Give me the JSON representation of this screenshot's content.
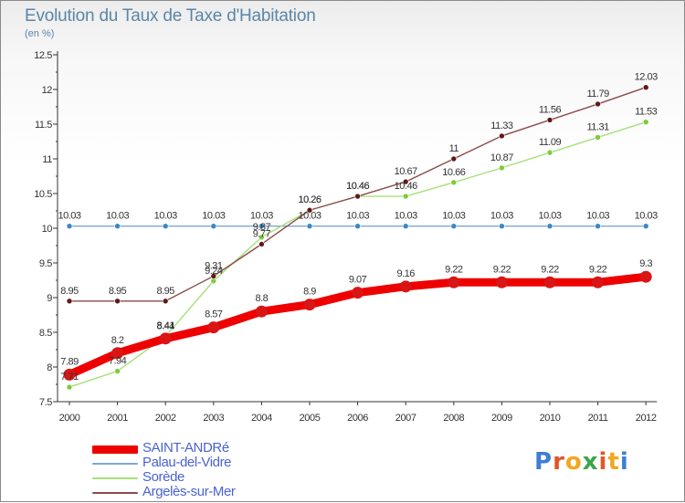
{
  "header": {
    "title": "Evolution du Taux de Taxe d'Habitation",
    "subtitle": "(en %)"
  },
  "brand": {
    "name": "Proxiti",
    "letters": [
      "P",
      "r",
      "o",
      "x",
      "i",
      "t",
      "i"
    ],
    "letter_colors": [
      "#3e7fd4",
      "#e0572a",
      "#f0a821",
      "#3aa64a",
      "#e0572a",
      "#f0a821",
      "#3e7fd4"
    ]
  },
  "chart_data": {
    "type": "line",
    "title": "Evolution du Taux de Taxe d'Habitation",
    "subtitle": "(en %)",
    "xlabel": "",
    "ylabel": "",
    "x": [
      "2000",
      "2001",
      "2002",
      "2003",
      "2004",
      "2005",
      "2006",
      "2007",
      "2008",
      "2009",
      "2010",
      "2011",
      "2012"
    ],
    "ylim": [
      7.5,
      12.5
    ],
    "yticks": [
      "7.5",
      "8",
      "8.5",
      "9",
      "9.5",
      "10",
      "10.5",
      "11",
      "11.5",
      "12",
      "12.5"
    ],
    "grid": false,
    "legend_position": "bottom-left",
    "series": [
      {
        "name": "SAINT-ANDRé",
        "color": "#ee0000",
        "point_color": "#d91515",
        "emphasis": true,
        "values": [
          7.89,
          8.2,
          8.41,
          8.57,
          8.8,
          8.9,
          9.07,
          9.16,
          9.22,
          9.22,
          9.22,
          9.22,
          9.3
        ],
        "labels": [
          "7.89",
          "8.2",
          "8.41",
          "8.57",
          "8.8",
          "8.9",
          "9.07",
          "9.16",
          "9.22",
          "9.22",
          "9.22",
          "9.22",
          "9.3"
        ]
      },
      {
        "name": "Palau-del-Vidre",
        "color": "#7da9cc",
        "point_color": "#3d86c6",
        "values": [
          10.03,
          10.03,
          10.03,
          10.03,
          10.03,
          10.03,
          10.03,
          10.03,
          10.03,
          10.03,
          10.03,
          10.03,
          10.03
        ],
        "labels": [
          "10.03",
          "10.03",
          "10.03",
          "10.03",
          "10.03",
          "10.03",
          "10.03",
          "10.03",
          "10.03",
          "10.03",
          "10.03",
          "10.03",
          "10.03"
        ]
      },
      {
        "name": "Sorède",
        "color": "#a6e07a",
        "point_color": "#7ecb3c",
        "values": [
          7.71,
          7.94,
          8.44,
          9.24,
          9.87,
          10.26,
          10.46,
          10.46,
          10.66,
          10.87,
          11.09,
          11.31,
          11.53
        ],
        "labels": [
          "7.71",
          "7.94",
          "8.44",
          "9.24",
          "9.87",
          "10.26",
          "10.46",
          "10.46",
          "10.66",
          "10.87",
          "11.09",
          "11.31",
          "11.53"
        ]
      },
      {
        "name": "Argelès-sur-Mer",
        "color": "#8a4a4a",
        "point_color": "#5e1a1a",
        "values": [
          8.95,
          8.95,
          8.95,
          9.31,
          9.77,
          10.26,
          10.46,
          10.67,
          11,
          11.33,
          11.56,
          11.79,
          12.03
        ],
        "labels": [
          "8.95",
          "8.95",
          "8.95",
          "9.31",
          "9.77",
          "10.26",
          "10.46",
          "10.67",
          "11",
          "11.33",
          "11.56",
          "11.79",
          "12.03"
        ]
      }
    ]
  }
}
